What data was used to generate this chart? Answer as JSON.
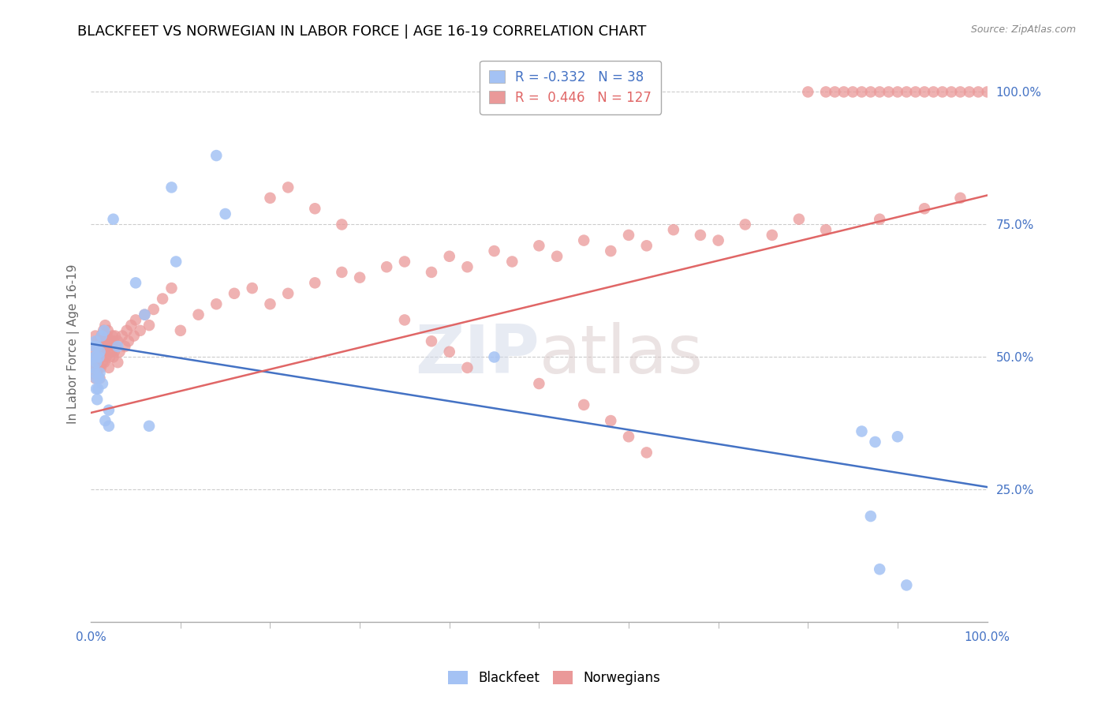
{
  "title": "BLACKFEET VS NORWEGIAN IN LABOR FORCE | AGE 16-19 CORRELATION CHART",
  "source": "Source: ZipAtlas.com",
  "ylabel": "In Labor Force | Age 16-19",
  "xlim": [
    0,
    1
  ],
  "ylim": [
    0,
    1.05
  ],
  "legend_r_blue": "-0.332",
  "legend_n_blue": "38",
  "legend_r_pink": "0.446",
  "legend_n_pink": "127",
  "blue_color": "#a4c2f4",
  "pink_color": "#ea9999",
  "blue_line_color": "#4472c4",
  "pink_line_color": "#e06666",
  "blue_line_y_start": 0.525,
  "blue_line_y_end": 0.255,
  "pink_line_y_start": 0.395,
  "pink_line_y_end": 0.805,
  "background_color": "#ffffff",
  "grid_color": "#cccccc",
  "axis_label_color": "#4472c4",
  "title_color": "#000000",
  "title_fontsize": 13,
  "axis_fontsize": 11,
  "tick_fontsize": 11,
  "legend_fontsize": 12,
  "blue_x": [
    0.003,
    0.004,
    0.004,
    0.005,
    0.005,
    0.005,
    0.006,
    0.006,
    0.006,
    0.007,
    0.007,
    0.008,
    0.009,
    0.009,
    0.01,
    0.01,
    0.012,
    0.013,
    0.015,
    0.016,
    0.02,
    0.02,
    0.025,
    0.03,
    0.05,
    0.06,
    0.065,
    0.09,
    0.095,
    0.14,
    0.15,
    0.45,
    0.86,
    0.87,
    0.875,
    0.88,
    0.9,
    0.91
  ],
  "blue_y": [
    0.48,
    0.5,
    0.52,
    0.47,
    0.5,
    0.53,
    0.44,
    0.46,
    0.49,
    0.42,
    0.52,
    0.44,
    0.46,
    0.5,
    0.47,
    0.51,
    0.54,
    0.45,
    0.55,
    0.38,
    0.37,
    0.4,
    0.76,
    0.52,
    0.64,
    0.58,
    0.37,
    0.82,
    0.68,
    0.88,
    0.77,
    0.5,
    0.36,
    0.2,
    0.34,
    0.1,
    0.35,
    0.07
  ],
  "pink_x": [
    0.002,
    0.003,
    0.004,
    0.005,
    0.005,
    0.005,
    0.006,
    0.006,
    0.007,
    0.007,
    0.007,
    0.008,
    0.008,
    0.009,
    0.009,
    0.01,
    0.01,
    0.01,
    0.011,
    0.011,
    0.012,
    0.012,
    0.013,
    0.013,
    0.014,
    0.014,
    0.015,
    0.015,
    0.016,
    0.016,
    0.017,
    0.018,
    0.018,
    0.019,
    0.02,
    0.02,
    0.021,
    0.022,
    0.023,
    0.024,
    0.025,
    0.025,
    0.026,
    0.027,
    0.028,
    0.03,
    0.03,
    0.032,
    0.035,
    0.038,
    0.04,
    0.042,
    0.045,
    0.048,
    0.05,
    0.055,
    0.06,
    0.065,
    0.07,
    0.08,
    0.09,
    0.1,
    0.12,
    0.14,
    0.16,
    0.18,
    0.2,
    0.22,
    0.25,
    0.28,
    0.3,
    0.33,
    0.35,
    0.38,
    0.4,
    0.42,
    0.45,
    0.47,
    0.5,
    0.52,
    0.55,
    0.58,
    0.6,
    0.62,
    0.65,
    0.68,
    0.7,
    0.73,
    0.76,
    0.79,
    0.8,
    0.82,
    0.82,
    0.83,
    0.84,
    0.85,
    0.86,
    0.87,
    0.88,
    0.88,
    0.89,
    0.9,
    0.91,
    0.92,
    0.93,
    0.93,
    0.94,
    0.95,
    0.96,
    0.97,
    0.97,
    0.98,
    0.99,
    1.0,
    0.5,
    0.55,
    0.58,
    0.6,
    0.62,
    0.35,
    0.38,
    0.4,
    0.42,
    0.2,
    0.22,
    0.25,
    0.28
  ],
  "pink_y": [
    0.47,
    0.49,
    0.5,
    0.46,
    0.51,
    0.54,
    0.48,
    0.52,
    0.47,
    0.5,
    0.53,
    0.49,
    0.52,
    0.48,
    0.51,
    0.46,
    0.5,
    0.53,
    0.48,
    0.52,
    0.5,
    0.54,
    0.49,
    0.53,
    0.51,
    0.55,
    0.49,
    0.53,
    0.52,
    0.56,
    0.5,
    0.54,
    0.52,
    0.55,
    0.48,
    0.52,
    0.5,
    0.53,
    0.51,
    0.54,
    0.5,
    0.53,
    0.51,
    0.54,
    0.52,
    0.49,
    0.53,
    0.51,
    0.54,
    0.52,
    0.55,
    0.53,
    0.56,
    0.54,
    0.57,
    0.55,
    0.58,
    0.56,
    0.59,
    0.61,
    0.63,
    0.55,
    0.58,
    0.6,
    0.62,
    0.63,
    0.6,
    0.62,
    0.64,
    0.66,
    0.65,
    0.67,
    0.68,
    0.66,
    0.69,
    0.67,
    0.7,
    0.68,
    0.71,
    0.69,
    0.72,
    0.7,
    0.73,
    0.71,
    0.74,
    0.73,
    0.72,
    0.75,
    0.73,
    0.76,
    1.0,
    1.0,
    0.74,
    1.0,
    1.0,
    1.0,
    1.0,
    1.0,
    1.0,
    0.76,
    1.0,
    1.0,
    1.0,
    1.0,
    1.0,
    0.78,
    1.0,
    1.0,
    1.0,
    1.0,
    0.8,
    1.0,
    1.0,
    1.0,
    0.45,
    0.41,
    0.38,
    0.35,
    0.32,
    0.57,
    0.53,
    0.51,
    0.48,
    0.8,
    0.82,
    0.78,
    0.75
  ]
}
